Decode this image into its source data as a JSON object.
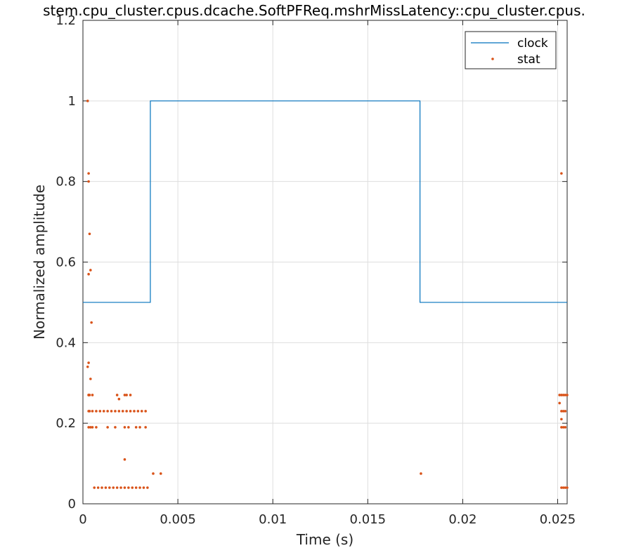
{
  "chart_data": {
    "type": "line",
    "title": "stem.cpu_cluster.cpus.dcache.SoftPFReq.mshrMissLatency::cpu_cluster.cpus.",
    "xlabel": "Time (s)",
    "ylabel": "Normalized amplitude",
    "xlim": [
      0,
      0.0255
    ],
    "ylim": [
      0,
      1.2
    ],
    "xticks": [
      0,
      0.005,
      0.01,
      0.015,
      0.02,
      0.025
    ],
    "xtick_labels": [
      "0",
      "0.005",
      "0.01",
      "0.015",
      "0.02",
      "0.025"
    ],
    "yticks": [
      0,
      0.2,
      0.4,
      0.6,
      0.8,
      1.0,
      1.2
    ],
    "ytick_labels": [
      "0",
      "0.2",
      "0.4",
      "0.6",
      "0.8",
      "1",
      "1.2"
    ],
    "grid": true,
    "legend_position": "top-right",
    "series": [
      {
        "name": "clock",
        "style": "line",
        "color": "#0072BD",
        "x": [
          0,
          0.00355,
          0.00355,
          0.01775,
          0.01775,
          0.0255
        ],
        "y": [
          0.5,
          0.5,
          1.0,
          1.0,
          0.5,
          0.5
        ]
      },
      {
        "name": "stat",
        "style": "dots",
        "color": "#D95319",
        "x": [
          0.00025,
          0.0003,
          0.00035,
          0.0004,
          0.00045,
          0.0003,
          0.0003,
          0.0003,
          0.00025,
          0.0004,
          0.00035,
          0.0003,
          0.00035,
          0.0004,
          0.0006,
          0.0008,
          0.001,
          0.0012,
          0.0014,
          0.0016,
          0.0018,
          0.002,
          0.0022,
          0.0024,
          0.0026,
          0.0028,
          0.003,
          0.0032,
          0.0034,
          0.0003,
          0.0005,
          0.0007,
          0.0009,
          0.0011,
          0.0013,
          0.0015,
          0.0017,
          0.0019,
          0.0021,
          0.0023,
          0.0025,
          0.0027,
          0.0029,
          0.0031,
          0.0033,
          0.0003,
          0.0005,
          0.0007,
          0.0013,
          0.0017,
          0.0022,
          0.0024,
          0.0028,
          0.003,
          0.0033,
          0.0003,
          0.0005,
          0.0018,
          0.0019,
          0.0022,
          0.0023,
          0.0025,
          0.0022,
          0.0037,
          0.0041,
          0.0178,
          0.0252,
          0.0251,
          0.0252,
          0.0253,
          0.0254,
          0.0255,
          0.0251,
          0.0252,
          0.0253,
          0.0254,
          0.0252,
          0.0253,
          0.0254,
          0.0252,
          0.0253,
          0.0254,
          0.0255,
          0.0252
        ],
        "y": [
          1.0,
          0.82,
          0.67,
          0.58,
          0.45,
          0.8,
          0.57,
          0.35,
          0.34,
          0.31,
          0.27,
          0.27,
          0.23,
          0.19,
          0.04,
          0.04,
          0.04,
          0.04,
          0.04,
          0.04,
          0.04,
          0.04,
          0.04,
          0.04,
          0.04,
          0.04,
          0.04,
          0.04,
          0.04,
          0.23,
          0.23,
          0.23,
          0.23,
          0.23,
          0.23,
          0.23,
          0.23,
          0.23,
          0.23,
          0.23,
          0.23,
          0.23,
          0.23,
          0.23,
          0.23,
          0.19,
          0.19,
          0.19,
          0.19,
          0.19,
          0.19,
          0.19,
          0.19,
          0.19,
          0.19,
          0.27,
          0.27,
          0.27,
          0.26,
          0.27,
          0.27,
          0.27,
          0.11,
          0.075,
          0.075,
          0.075,
          0.82,
          0.27,
          0.27,
          0.27,
          0.27,
          0.27,
          0.25,
          0.23,
          0.23,
          0.23,
          0.19,
          0.19,
          0.19,
          0.04,
          0.04,
          0.04,
          0.04,
          0.21
        ]
      }
    ]
  }
}
